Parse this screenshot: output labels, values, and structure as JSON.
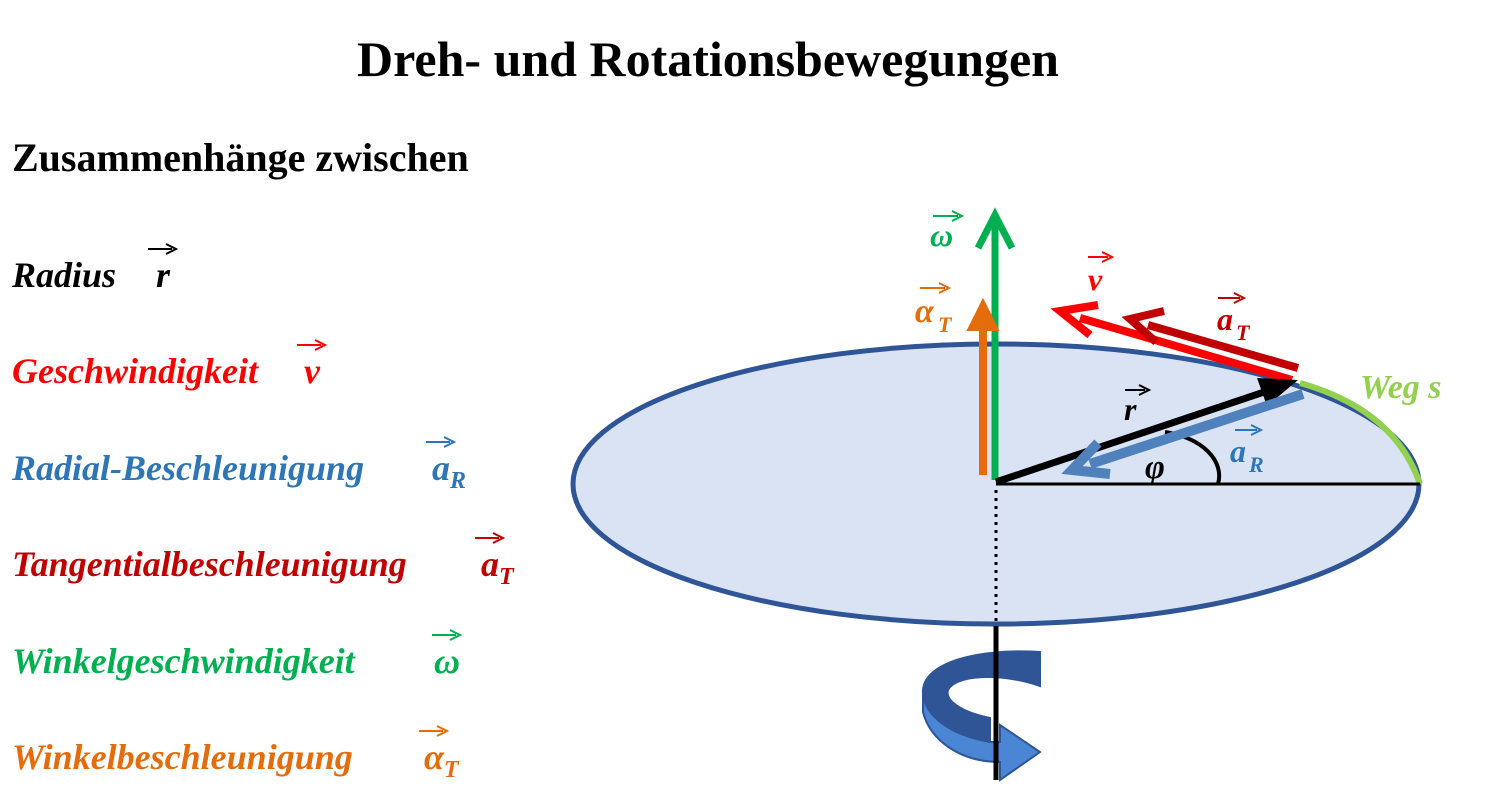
{
  "title": "Dreh- und Rotationsbewegungen",
  "subtitle": "Zusammenhänge zwischen",
  "legend": [
    {
      "label": "Radius",
      "symbol": "r",
      "sub": "",
      "color": "#000000"
    },
    {
      "label": "Geschwindigkeit",
      "symbol": "v",
      "sub": "",
      "color": "#ff0000"
    },
    {
      "label": "Radial-Beschleunigung",
      "symbol": "a",
      "sub": "R",
      "color": "#2e75b6"
    },
    {
      "label": "Tangentialbeschleunigung",
      "symbol": "a",
      "sub": "T",
      "color": "#c00000"
    },
    {
      "label": "Winkelgeschwindigkeit",
      "symbol": "ω",
      "sub": "",
      "color": "#00b050"
    },
    {
      "label": "Winkelbeschleunigung",
      "symbol": "α",
      "sub": "T",
      "color": "#e46c0a"
    }
  ],
  "diagram": {
    "omega_symbol": "ω",
    "alpha_symbol": "α",
    "alpha_sub": "T",
    "v_symbol": "v",
    "aT_symbol": "a",
    "aT_sub": "T",
    "r_symbol": "r",
    "aR_symbol": "a",
    "aR_sub": "R",
    "phi_symbol": "φ",
    "weg_label": "Weg s",
    "colors": {
      "disc_fill": "#dae3f3",
      "disc_stroke": "#2f5597",
      "path": "#92d050",
      "rotation_arrow": "#4a86d4"
    }
  }
}
